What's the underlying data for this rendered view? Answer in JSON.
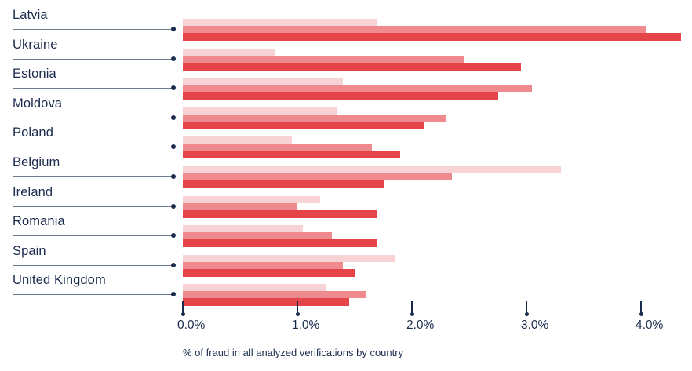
{
  "caption": "% of fraud in all analyzed verifications by country",
  "colors": {
    "bar_light": "#f8d3d6",
    "bar_medium": "#ef8a8e",
    "bar_dark": "#e54449",
    "text_navy": "#1b2b4d",
    "leader_line_gray": "#6e7b8a",
    "background": "#ffffff"
  },
  "chart_data": {
    "type": "bar",
    "orientation": "horizontal",
    "title": "",
    "xlabel": "% of fraud in all analyzed verifications by country",
    "ylabel": "",
    "x_ticks": [
      "0.0%",
      "1.0%",
      "2.0%",
      "3.0%",
      "4.0%"
    ],
    "x_tick_values": [
      0.0,
      1.0,
      2.0,
      3.0,
      4.0
    ],
    "xlim": [
      0,
      4.45
    ],
    "grid": false,
    "legend": "none",
    "categories": [
      "Latvia",
      "Ukraine",
      "Estonia",
      "Moldova",
      "Poland",
      "Belgium",
      "Ireland",
      "Romania",
      "Spain",
      "United Kingdom"
    ],
    "series": [
      {
        "name": "series-light-pink",
        "color": "#f8d3d6",
        "values": [
          1.7,
          0.8,
          1.4,
          1.35,
          0.95,
          3.3,
          1.2,
          1.05,
          1.85,
          1.25
        ]
      },
      {
        "name": "series-medium-salmon",
        "color": "#ef8a8e",
        "values": [
          4.05,
          2.45,
          3.05,
          2.3,
          1.65,
          2.35,
          1.0,
          1.3,
          1.4,
          1.6
        ]
      },
      {
        "name": "series-dark-red",
        "color": "#e54449",
        "values": [
          4.35,
          2.95,
          2.75,
          2.1,
          1.9,
          1.75,
          1.7,
          1.7,
          1.5,
          1.45
        ]
      }
    ]
  }
}
